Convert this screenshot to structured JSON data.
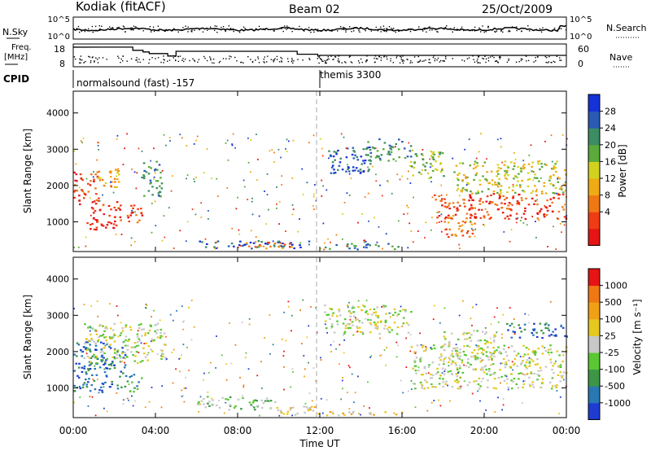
{
  "header": {
    "station": "Kodiak (fitACF)",
    "beam": "Beam 02",
    "date": "25/Oct/2009"
  },
  "chart_data": [
    {
      "type": "line",
      "panel": "noise",
      "left_label": "N.Sky",
      "right_label": "N.Search",
      "left_ticks": [
        "10^5",
        "10^0"
      ],
      "right_ticks": [
        "10^5",
        "10^0"
      ],
      "yscale": "log"
    },
    {
      "type": "line",
      "panel": "frequency",
      "left_label": "Freq.",
      "left_unit": "[MHz]",
      "left_ticks": [
        18,
        8
      ],
      "right_label": "Nave",
      "right_ticks": [
        60,
        0
      ],
      "freq_steps": [
        {
          "t": 0.0,
          "f": 16.6
        },
        {
          "t": 2.9,
          "f": 15.2
        },
        {
          "t": 3.4,
          "f": 14.5
        },
        {
          "t": 3.7,
          "f": 13.8
        },
        {
          "t": 4.6,
          "f": 12.7
        },
        {
          "t": 5.0,
          "f": 14.8
        },
        {
          "t": 10.9,
          "f": 13.5
        },
        {
          "t": 11.9,
          "f": 12.7
        },
        {
          "t": 12.0,
          "f": 13.0
        },
        {
          "t": 24.0,
          "f": 13.0
        }
      ]
    },
    {
      "type": "table",
      "panel": "cpid",
      "label": "CPID",
      "segments": [
        {
          "start": 0,
          "end": 12,
          "name": "normalsound (fast) -157"
        },
        {
          "start": 12,
          "end": 24,
          "name": "themis 3300"
        }
      ]
    },
    {
      "type": "heatmap",
      "panel": "power",
      "ylabel": "Slant Range [km]",
      "ylim": [
        180,
        4600
      ],
      "yticks": [
        1000,
        2000,
        3000,
        4000
      ],
      "xlim": [
        0,
        24
      ],
      "colorbar": {
        "label": "Power [dB]",
        "ticks": [
          "4",
          "8",
          "12",
          "16",
          "20",
          "24",
          "28"
        ],
        "colors": [
          "#1432d8",
          "#2a5ab4",
          "#3c8c64",
          "#5aaa3c",
          "#d2d21e",
          "#f0aa14",
          "#f07814",
          "#f03c14",
          "#e61414"
        ]
      },
      "regions": [
        {
          "t0": 0.0,
          "t1": 1.2,
          "r0": 1500,
          "r1": 2400,
          "level": 7
        },
        {
          "t0": 0.6,
          "t1": 2.3,
          "r0": 800,
          "r1": 1600,
          "level": 8
        },
        {
          "t0": 2.6,
          "t1": 3.4,
          "r0": 900,
          "r1": 1500,
          "level": 7
        },
        {
          "t0": 1.0,
          "t1": 2.2,
          "r0": 1900,
          "r1": 2500,
          "level": 5
        },
        {
          "t0": 3.3,
          "t1": 4.3,
          "r0": 1700,
          "r1": 2700,
          "level": 2
        },
        {
          "t0": 6.0,
          "t1": 11.5,
          "r0": 280,
          "r1": 500,
          "level": 1
        },
        {
          "t0": 8.0,
          "t1": 10.8,
          "r0": 280,
          "r1": 460,
          "level": 6
        },
        {
          "t0": 12.3,
          "t1": 14.5,
          "r0": 2350,
          "r1": 3100,
          "level": 1
        },
        {
          "t0": 14.2,
          "t1": 16.4,
          "r0": 2700,
          "r1": 3300,
          "level": 2
        },
        {
          "t0": 16.3,
          "t1": 18.0,
          "r0": 2200,
          "r1": 3000,
          "level": 3
        },
        {
          "t0": 17.5,
          "t1": 24.0,
          "r0": 1100,
          "r1": 1800,
          "level": 7
        },
        {
          "t0": 18.5,
          "t1": 24.0,
          "r0": 1800,
          "r1": 2700,
          "level": 4
        },
        {
          "t0": 18.0,
          "t1": 19.5,
          "r0": 600,
          "r1": 1200,
          "level": 6
        },
        {
          "t0": 12.0,
          "t1": 16.0,
          "r0": 260,
          "r1": 420,
          "level": 2
        }
      ]
    },
    {
      "type": "heatmap",
      "panel": "velocity",
      "ylabel": "Slant Range [km]",
      "xlabel": "Time UT",
      "ylim": [
        180,
        4600
      ],
      "yticks": [
        1000,
        2000,
        3000,
        4000
      ],
      "xlim": [
        0,
        24
      ],
      "xticks": [
        "00:00",
        "04:00",
        "08:00",
        "12:00",
        "16:00",
        "20:00",
        "00:00"
      ],
      "colorbar": {
        "label": "Velocity [m s⁻¹]",
        "ticks": [
          "1000",
          "500",
          "100",
          "25",
          "-25",
          "-100",
          "-500",
          "-1000"
        ],
        "colors": [
          "#1e3cd2",
          "#2878b4",
          "#3c9646",
          "#5ac832",
          "#c8c8c8",
          "#e6c81e",
          "#f0a014",
          "#f07814",
          "#e61414"
        ]
      },
      "regions": [
        {
          "t0": 0.0,
          "t1": 2.5,
          "r0": 900,
          "r1": 2300,
          "level": 7
        },
        {
          "t0": 2.5,
          "t1": 3.3,
          "r0": 900,
          "r1": 1400,
          "level": 6
        },
        {
          "t0": 0.4,
          "t1": 4.5,
          "r0": 1700,
          "r1": 2800,
          "level": 4
        },
        {
          "t0": 6.0,
          "t1": 9.8,
          "r0": 420,
          "r1": 780,
          "level": 5
        },
        {
          "t0": 9.8,
          "t1": 12.2,
          "r0": 250,
          "r1": 520,
          "level": 3
        },
        {
          "t0": 12.2,
          "t1": 16.0,
          "r0": 250,
          "r1": 380,
          "level": 3
        },
        {
          "t0": 12.2,
          "t1": 16.4,
          "r0": 2500,
          "r1": 3300,
          "level": 4
        },
        {
          "t0": 16.4,
          "t1": 24.0,
          "r0": 1000,
          "r1": 2200,
          "level": 4
        },
        {
          "t0": 21.0,
          "t1": 24.0,
          "r0": 2400,
          "r1": 2800,
          "level": 7
        },
        {
          "t0": 18.0,
          "t1": 20.5,
          "r0": 1800,
          "r1": 2600,
          "level": 4
        }
      ]
    }
  ]
}
